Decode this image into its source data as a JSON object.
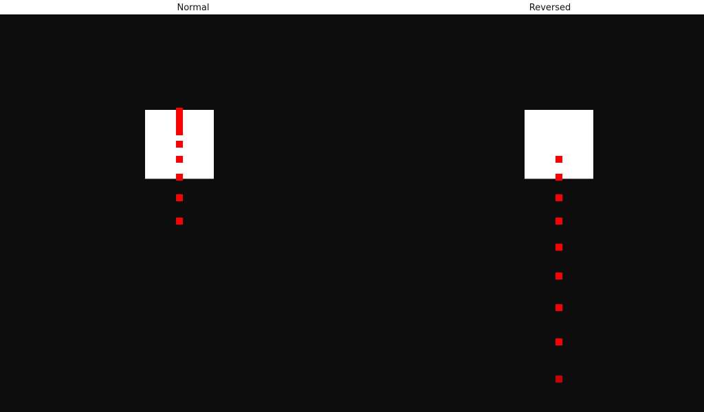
{
  "panels": [
    {
      "title": "Normal",
      "dot_color": "#ff0000",
      "box_color": "#ffffff"
    },
    {
      "title": "Reversed",
      "dot_color": "#ff0000",
      "box_color": "#ffffff"
    }
  ],
  "background_color": "#0d0d0d"
}
